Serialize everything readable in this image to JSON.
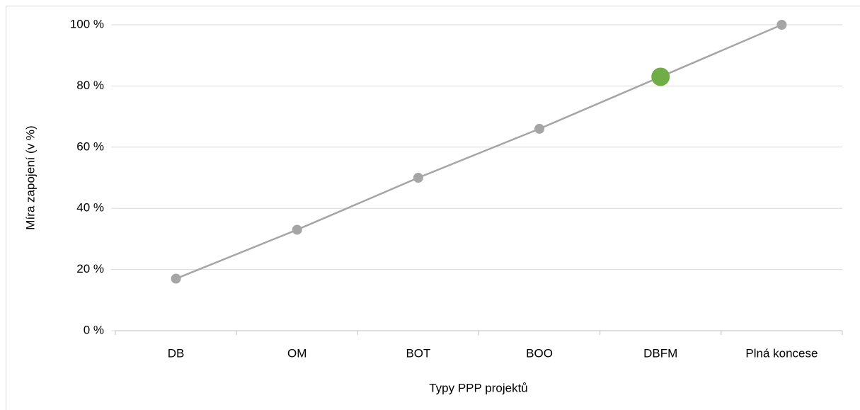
{
  "chart_data": {
    "type": "line",
    "categories": [
      "DB",
      "OM",
      "BOT",
      "BOO",
      "DBFM",
      "Plná koncese"
    ],
    "series": [
      {
        "color": "#a5a5a5",
        "values": [
          17,
          33,
          50,
          66,
          83,
          100
        ],
        "marker_colors": [
          "#a5a5a5",
          "#a5a5a5",
          "#a5a5a5",
          "#a5a5a5",
          "#70ad47",
          "#a5a5a5"
        ]
      }
    ],
    "ylim": [
      0,
      100
    ],
    "yticks": [
      {
        "value": 0,
        "label": "0 %"
      },
      {
        "value": 20,
        "label": "20 %"
      },
      {
        "value": 40,
        "label": "40 %"
      },
      {
        "value": 60,
        "label": "60 %"
      },
      {
        "value": 80,
        "label": "80 %"
      },
      {
        "value": 100,
        "label": "100 %"
      }
    ],
    "grid": true,
    "x_label": "Typy PPP projektů",
    "y_label": "Míra zapojení (v %)"
  }
}
